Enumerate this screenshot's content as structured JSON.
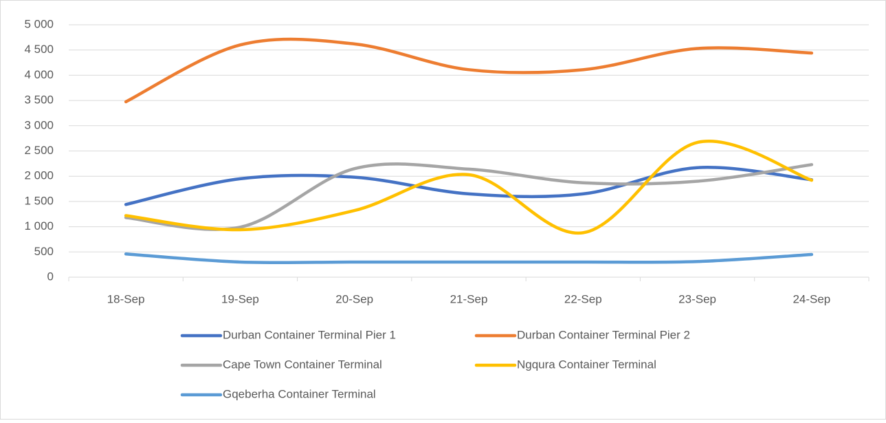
{
  "chart_data": {
    "type": "line",
    "categories": [
      "18-Sep",
      "19-Sep",
      "20-Sep",
      "21-Sep",
      "22-Sep",
      "23-Sep",
      "24-Sep"
    ],
    "series": [
      {
        "name": "Durban Container Terminal Pier 1",
        "color": "#4472c4",
        "values": [
          1440,
          1950,
          1980,
          1650,
          1650,
          2170,
          1930
        ]
      },
      {
        "name": "Durban Container Terminal Pier 2",
        "color": "#ed7d31",
        "values": [
          3475,
          4600,
          4620,
          4110,
          4110,
          4530,
          4440
        ]
      },
      {
        "name": "Cape Town Container Terminal",
        "color": "#a5a5a5",
        "values": [
          1180,
          990,
          2150,
          2140,
          1870,
          1900,
          2230
        ]
      },
      {
        "name": "Ngqura Container Terminal",
        "color": "#ffc000",
        "values": [
          1220,
          940,
          1320,
          2030,
          880,
          2670,
          1920
        ]
      },
      {
        "name": "Gqeberha Container Terminal",
        "color": "#5b9bd5",
        "values": [
          460,
          300,
          300,
          300,
          300,
          310,
          450
        ]
      }
    ],
    "ylim": [
      0,
      5000
    ],
    "yticks": [
      0,
      500,
      {
        "value": 1000,
        "label": "1 000"
      },
      {
        "value": 1500,
        "label": "1 500"
      },
      {
        "value": 2000,
        "label": "2 000"
      },
      {
        "value": 2500,
        "label": "2 500"
      },
      {
        "value": 3000,
        "label": "3 000"
      },
      {
        "value": 3500,
        "label": "3 500"
      },
      {
        "value": 4000,
        "label": "4 000"
      },
      {
        "value": 4500,
        "label": "4 500"
      },
      {
        "value": 5000,
        "label": "5 000"
      }
    ],
    "grid": true,
    "smooth": true,
    "legend": "bottom"
  }
}
